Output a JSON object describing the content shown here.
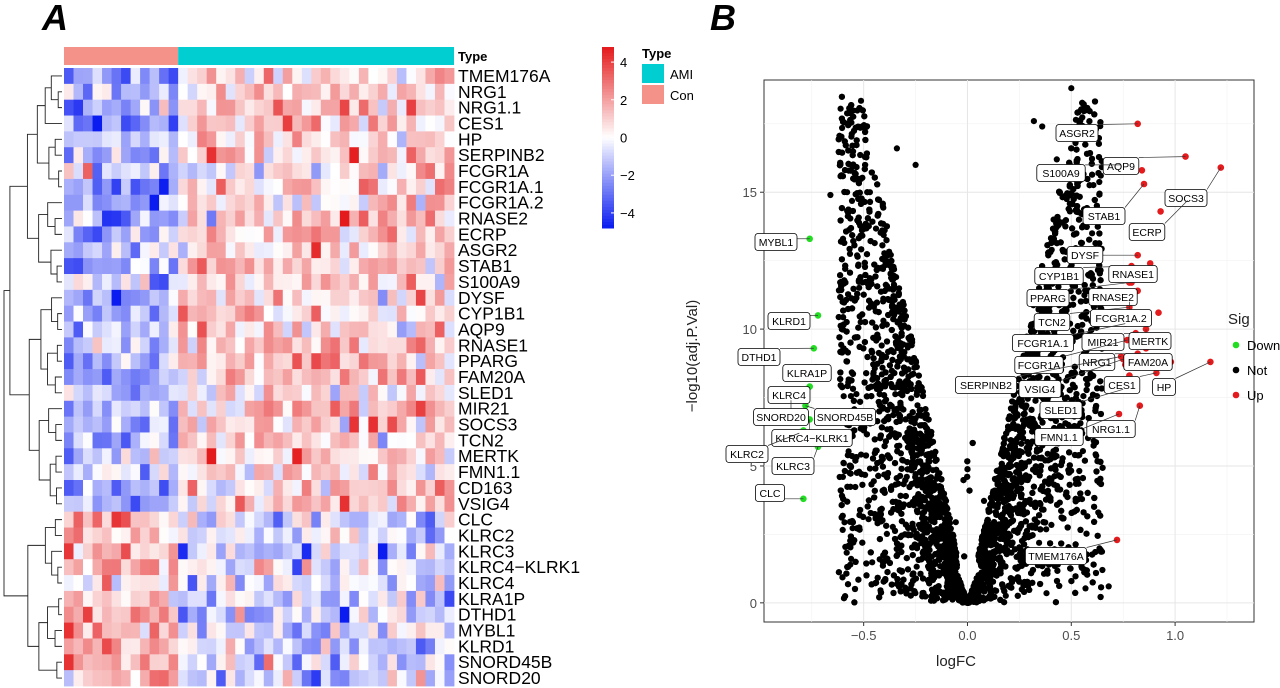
{
  "colors": {
    "ami": "#00CED1",
    "con": "#F4928A",
    "high": "#E41A1C",
    "low": "#0A1CF0",
    "mid": "#FFFFFF",
    "down": "#22DD22",
    "not": "#000000",
    "up": "#E41A1C"
  },
  "panel_a": {
    "letter": "A",
    "annotation_title": "Type",
    "legend_title": "Type",
    "legend_items": [
      {
        "label": "AMI",
        "color": "#00CED1"
      },
      {
        "label": "Con",
        "color": "#F4928A"
      }
    ],
    "colorbar_ticks": [
      "4",
      "2",
      "0",
      "−2",
      "−4"
    ]
  },
  "panel_b": {
    "letter": "B",
    "legend_title": "Sig",
    "legend_items": [
      {
        "label": "Down",
        "color": "#22DD22"
      },
      {
        "label": "Not",
        "color": "#000000"
      },
      {
        "label": "Up",
        "color": "#E41A1C"
      }
    ]
  },
  "chart_data": [
    {
      "type": "heatmap",
      "title": "",
      "color_scale": {
        "min": -4.8,
        "max": 4.8,
        "ticks": [
          4,
          2,
          0,
          -2,
          -4
        ]
      },
      "column_groups": [
        {
          "name": "Con",
          "count": 12
        },
        {
          "name": "AMI",
          "count": 29
        }
      ],
      "row_clusters": [
        {
          "pattern": "up_in_AMI",
          "rows": [
            "TMEM176A",
            "NRG1",
            "NRG1.1",
            "CES1",
            "HP",
            "SERPINB2",
            "FCGR1A",
            "FCGR1A.1",
            "FCGR1A.2",
            "RNASE2",
            "ECRP",
            "ASGR2",
            "STAB1",
            "S100A9",
            "DYSF",
            "CYP1B1",
            "AQP9",
            "RNASE1",
            "PPARG",
            "FAM20A",
            "SLED1",
            "MIR21",
            "SOCS3",
            "TCN2",
            "MERTK",
            "FMN1.1",
            "CD163",
            "VSIG4"
          ]
        },
        {
          "pattern": "down_in_AMI",
          "rows": [
            "CLC",
            "KLRC2",
            "KLRC3",
            "KLRC4−KLRK1",
            "KLRC4",
            "KLRA1P",
            "DTHD1",
            "MYBL1",
            "KLRD1",
            "SNORD45B",
            "SNORD20"
          ]
        }
      ]
    },
    {
      "type": "scatter",
      "title": "",
      "xlabel": "logFC",
      "ylabel": "−log10(adj.P.Val)",
      "xlim": [
        -0.98,
        1.38
      ],
      "ylim": [
        -0.7,
        19.1
      ],
      "x_ticks": [
        -0.5,
        0.0,
        0.5,
        1.0
      ],
      "x_tick_labels": [
        "−0.5",
        "0.0",
        "0.5",
        "1.0"
      ],
      "y_ticks": [
        0,
        5,
        10,
        15
      ],
      "y_tick_labels": [
        "0",
        "5",
        "10",
        "15"
      ],
      "grid": true,
      "legend_position": "right",
      "labeled_points": [
        {
          "label": "ASGR2",
          "x": 0.82,
          "y": 17.5,
          "sig": "Up"
        },
        {
          "label": "AQP9",
          "x": 1.05,
          "y": 16.3,
          "sig": "Up"
        },
        {
          "label": "S100A9",
          "x": 0.74,
          "y": 16.0,
          "sig": "Up"
        },
        {
          "label": "SOCS3",
          "x": 1.22,
          "y": 15.9,
          "sig": "Up"
        },
        {
          "label": "STAB1",
          "x": 0.85,
          "y": 15.3,
          "sig": "Up"
        },
        {
          "label": "ECRP",
          "x": 1.06,
          "y": 14.7,
          "sig": "Up"
        },
        {
          "label": "DYSF",
          "x": 0.82,
          "y": 12.7,
          "sig": "Up"
        },
        {
          "label": "CYP1B1",
          "x": 0.79,
          "y": 12.3,
          "sig": "Up"
        },
        {
          "label": "RNASE1",
          "x": 0.88,
          "y": 12.1,
          "sig": "Up"
        },
        {
          "label": "PPARG",
          "x": 0.78,
          "y": 11.7,
          "sig": "Up"
        },
        {
          "label": "RNASE2",
          "x": 0.82,
          "y": 11.4,
          "sig": "Up"
        },
        {
          "label": "TCN2",
          "x": 0.78,
          "y": 10.8,
          "sig": "Up"
        },
        {
          "label": "FCGR1A.2",
          "x": 0.78,
          "y": 11.0,
          "sig": "Up"
        },
        {
          "label": "FCGR1A.1",
          "x": 0.76,
          "y": 10.2,
          "sig": "Up"
        },
        {
          "label": "MIR21",
          "x": 0.81,
          "y": 9.85,
          "sig": "Up"
        },
        {
          "label": "MERTK",
          "x": 0.86,
          "y": 10.0,
          "sig": "Up"
        },
        {
          "label": "FCGR1A",
          "x": 0.77,
          "y": 9.6,
          "sig": "Up"
        },
        {
          "label": "NRG1",
          "x": 0.82,
          "y": 9.1,
          "sig": "Up"
        },
        {
          "label": "FAM20A",
          "x": 0.98,
          "y": 8.8,
          "sig": "Up"
        },
        {
          "label": "SERPINB2",
          "x": 0.74,
          "y": 9.0,
          "sig": "Up"
        },
        {
          "label": "VSIG4",
          "x": 0.75,
          "y": 8.9,
          "sig": "Up"
        },
        {
          "label": "CES1",
          "x": 0.91,
          "y": 8.4,
          "sig": "Up"
        },
        {
          "label": "HP",
          "x": 1.17,
          "y": 8.8,
          "sig": "Up"
        },
        {
          "label": "SLED1",
          "x": 0.75,
          "y": 7.8,
          "sig": "Up"
        },
        {
          "label": "NRG1.1",
          "x": 0.83,
          "y": 7.2,
          "sig": "Up"
        },
        {
          "label": "FMN1.1",
          "x": 0.73,
          "y": 6.9,
          "sig": "Up"
        },
        {
          "label": "TMEM176A",
          "x": 0.72,
          "y": 2.3,
          "sig": "Up"
        },
        {
          "label": "MYBL1",
          "x": -0.76,
          "y": 13.3,
          "sig": "Down"
        },
        {
          "label": "KLRD1",
          "x": -0.72,
          "y": 10.5,
          "sig": "Down"
        },
        {
          "label": "DTHD1",
          "x": -0.74,
          "y": 9.3,
          "sig": "Down"
        },
        {
          "label": "KLRA1P",
          "x": -0.73,
          "y": 8.6,
          "sig": "Down"
        },
        {
          "label": "KLRC4",
          "x": -0.76,
          "y": 7.9,
          "sig": "Down"
        },
        {
          "label": "SNORD20",
          "x": -0.85,
          "y": 7.4,
          "sig": "Down"
        },
        {
          "label": "SNORD45B",
          "x": -0.78,
          "y": 7.2,
          "sig": "Down"
        },
        {
          "label": "KLRC4−KLRK1",
          "x": -0.76,
          "y": 6.7,
          "sig": "Down"
        },
        {
          "label": "KLRC2",
          "x": -0.81,
          "y": 6.2,
          "sig": "Down"
        },
        {
          "label": "KLRC3",
          "x": -0.72,
          "y": 5.7,
          "sig": "Down"
        },
        {
          "label": "CLC",
          "x": -0.79,
          "y": 3.8,
          "sig": "Down"
        }
      ],
      "background_points": "Thousands of non-significant genes (Not) forming a V-shaped cloud between logFC −0.7 and 0.7, with −log10(adj.P.Val) rising from 0 toward about 18 at |logFC| near 0.5."
    }
  ]
}
